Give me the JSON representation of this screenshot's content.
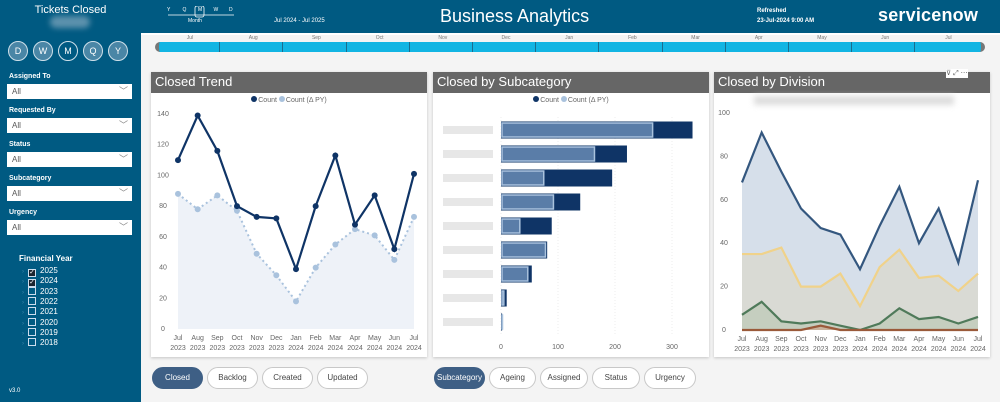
{
  "sidebar": {
    "tickets_closed_label": "Tickets Closed",
    "granularity_buttons": [
      "D",
      "W",
      "M",
      "Q",
      "Y"
    ],
    "selected_granularity": "M",
    "filters": [
      {
        "label": "Assigned To",
        "value": "All"
      },
      {
        "label": "Requested By",
        "value": "All"
      },
      {
        "label": "Status",
        "value": "All"
      },
      {
        "label": "Subcategory",
        "value": "All"
      },
      {
        "label": "Urgency",
        "value": "All"
      }
    ],
    "financial_year": {
      "title": "Financial Year",
      "years": [
        {
          "label": "2025",
          "checked": true
        },
        {
          "label": "2024",
          "checked": true
        },
        {
          "label": "2023",
          "checked": false
        },
        {
          "label": "2022",
          "checked": false
        },
        {
          "label": "2021",
          "checked": false
        },
        {
          "label": "2020",
          "checked": false
        },
        {
          "label": "2019",
          "checked": false
        },
        {
          "label": "2018",
          "checked": false
        }
      ]
    },
    "version": "v3.0"
  },
  "header": {
    "granularity_slider": {
      "options": [
        "Y",
        "Q",
        "M",
        "W",
        "D"
      ],
      "selected": "M",
      "label": "Month"
    },
    "date_range": "Jul 2024 - Jul 2025",
    "title": "Business Analytics",
    "refreshed_label": "Refreshed",
    "refreshed_value": "23-Jul-2024 9:00 AM",
    "logo": "servicenow"
  },
  "timeline": {
    "months": [
      "Jul",
      "Aug",
      "Sep",
      "Oct",
      "Nov",
      "Dec",
      "Jan",
      "Feb",
      "Mar",
      "Apr",
      "May",
      "Jun",
      "Jul"
    ]
  },
  "colors": {
    "header": "#005a82",
    "count": "#0f3466",
    "count_py": "#a9c2dd",
    "bar_py": "#5a7da8",
    "div1": "#34577f",
    "div2": "#f0d28a",
    "div3": "#4f7a5a",
    "div4": "#9a5a3a",
    "selected_button": "#3e5f85"
  },
  "chart_data": [
    {
      "type": "line",
      "title": "Closed Trend",
      "legend": [
        "Count",
        "Count (Δ PY)"
      ],
      "categories": [
        "Jul 2023",
        "Aug 2023",
        "Sep 2023",
        "Oct 2023",
        "Nov 2023",
        "Dec 2023",
        "Jan 2024",
        "Feb 2024",
        "Mar 2024",
        "Apr 2024",
        "May 2024",
        "Jun 2024",
        "Jul 2024"
      ],
      "series": [
        {
          "name": "Count",
          "values": [
            110,
            139,
            116,
            80,
            73,
            72,
            39,
            80,
            113,
            68,
            87,
            52,
            101
          ]
        },
        {
          "name": "Count (Δ PY)",
          "values": [
            88,
            78,
            87,
            77,
            49,
            35,
            18,
            40,
            55,
            65,
            61,
            45,
            73
          ]
        }
      ],
      "yticks": [
        0,
        20,
        40,
        60,
        80,
        100,
        120,
        140
      ],
      "ylim": [
        0,
        140
      ]
    },
    {
      "type": "bar",
      "orientation": "horizontal",
      "title": "Closed by Subcategory",
      "legend": [
        "Count",
        "Count (Δ PY)"
      ],
      "series": [
        {
          "name": "Count",
          "values": [
            336,
            221,
            195,
            139,
            89,
            81,
            54,
            10,
            2
          ]
        },
        {
          "name": "Count (Δ PY)",
          "values": [
            266,
            164,
            75,
            92,
            33,
            78,
            47,
            5,
            1
          ]
        }
      ],
      "xticks": [
        0,
        100,
        200,
        300
      ],
      "xlim": [
        0,
        340
      ]
    },
    {
      "type": "area",
      "title": "Closed by Division",
      "categories": [
        "Jul 2023",
        "Aug 2023",
        "Sep 2023",
        "Oct 2023",
        "Nov 2023",
        "Dec 2023",
        "Jan 2024",
        "Feb 2024",
        "Mar 2024",
        "Apr 2024",
        "May 2024",
        "Jun 2024",
        "Jul 2024"
      ],
      "series": [
        {
          "values": [
            68,
            91,
            73,
            56,
            47,
            44,
            28,
            48,
            66,
            40,
            56,
            31,
            69
          ]
        },
        {
          "values": [
            35,
            35,
            38,
            20,
            20,
            26,
            11,
            29,
            37,
            24,
            25,
            18,
            26
          ]
        },
        {
          "values": [
            7,
            13,
            4,
            3,
            4,
            2,
            0,
            3,
            10,
            5,
            6,
            3,
            6
          ]
        },
        {
          "values": [
            0,
            0,
            0,
            0,
            2,
            0,
            0,
            0,
            0,
            0,
            0,
            0,
            0
          ]
        }
      ],
      "yticks": [
        0,
        20,
        40,
        60,
        80,
        100
      ],
      "ylim": [
        0,
        100
      ]
    }
  ],
  "bottom_left_buttons": {
    "items": [
      "Closed",
      "Backlog",
      "Created",
      "Updated"
    ],
    "selected": "Closed"
  },
  "bottom_right_buttons": {
    "items": [
      "Subcategory",
      "Ageing",
      "Assigned",
      "Status",
      "Urgency"
    ],
    "selected": "Subcategory"
  },
  "visual_header_icons": [
    "filter-icon",
    "focus-mode-icon",
    "more-options-icon"
  ]
}
